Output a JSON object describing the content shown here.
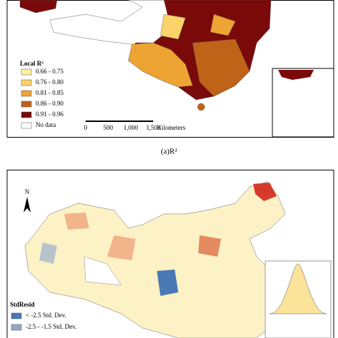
{
  "top_panel": {
    "legend": {
      "title": "Local R²",
      "items": [
        {
          "label": "0.66 - 0.75",
          "color": "#fff29e"
        },
        {
          "label": "0.76 - 0.80",
          "color": "#fcd36a"
        },
        {
          "label": "0.81 - 0.85",
          "color": "#eea432"
        },
        {
          "label": "0.86 - 0.90",
          "color": "#bf6318"
        },
        {
          "label": "0.91 - 0.96",
          "color": "#7a0a0a"
        },
        {
          "label": "No data",
          "color": "#ffffff"
        }
      ]
    },
    "scale_bar": {
      "ticks": [
        "0",
        "500",
        "1,000",
        "1,500"
      ],
      "unit": "Kilometers"
    }
  },
  "caption": "(a)R²",
  "bottom_panel": {
    "north": "N",
    "legend": {
      "title": "StdResid",
      "items": [
        {
          "label": "< -2.5 Std. Dev.",
          "color": "#4a78b5"
        },
        {
          "label": "-2.5 - -1.5 Std. Dev.",
          "color": "#93a9c6"
        }
      ]
    }
  }
}
